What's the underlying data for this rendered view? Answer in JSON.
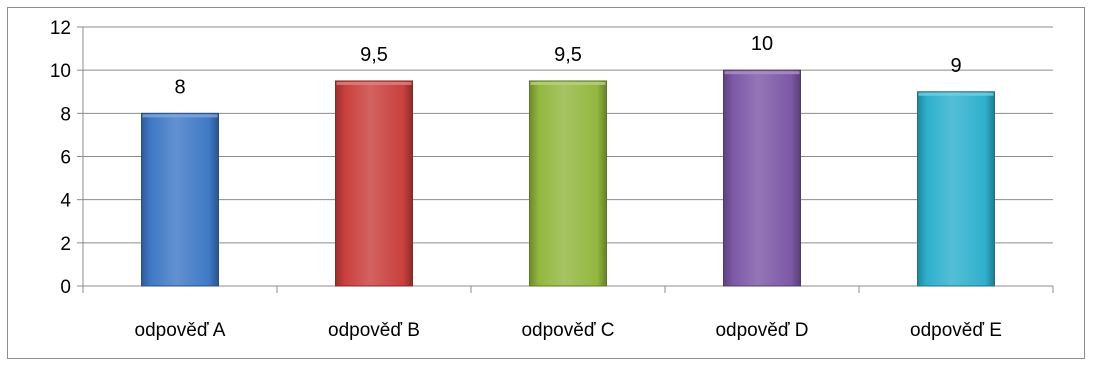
{
  "chart_data": {
    "type": "bar",
    "title": "",
    "xlabel": "",
    "ylabel": "",
    "categories": [
      "odpověď A",
      "odpověď B",
      "odpověď C",
      "odpověď D",
      "odpověď E"
    ],
    "values": [
      8,
      9.5,
      9.5,
      10,
      9
    ],
    "data_labels": [
      "8",
      "9,5",
      "9,5",
      "10",
      "9"
    ],
    "ylim": [
      0,
      12
    ],
    "yticks": [
      0,
      2,
      4,
      6,
      8,
      10,
      12
    ],
    "grid": true,
    "legend": "none",
    "colors": [
      "#3f79c6",
      "#c9403d",
      "#93b73f",
      "#7d58a6",
      "#2fb0cd"
    ]
  }
}
